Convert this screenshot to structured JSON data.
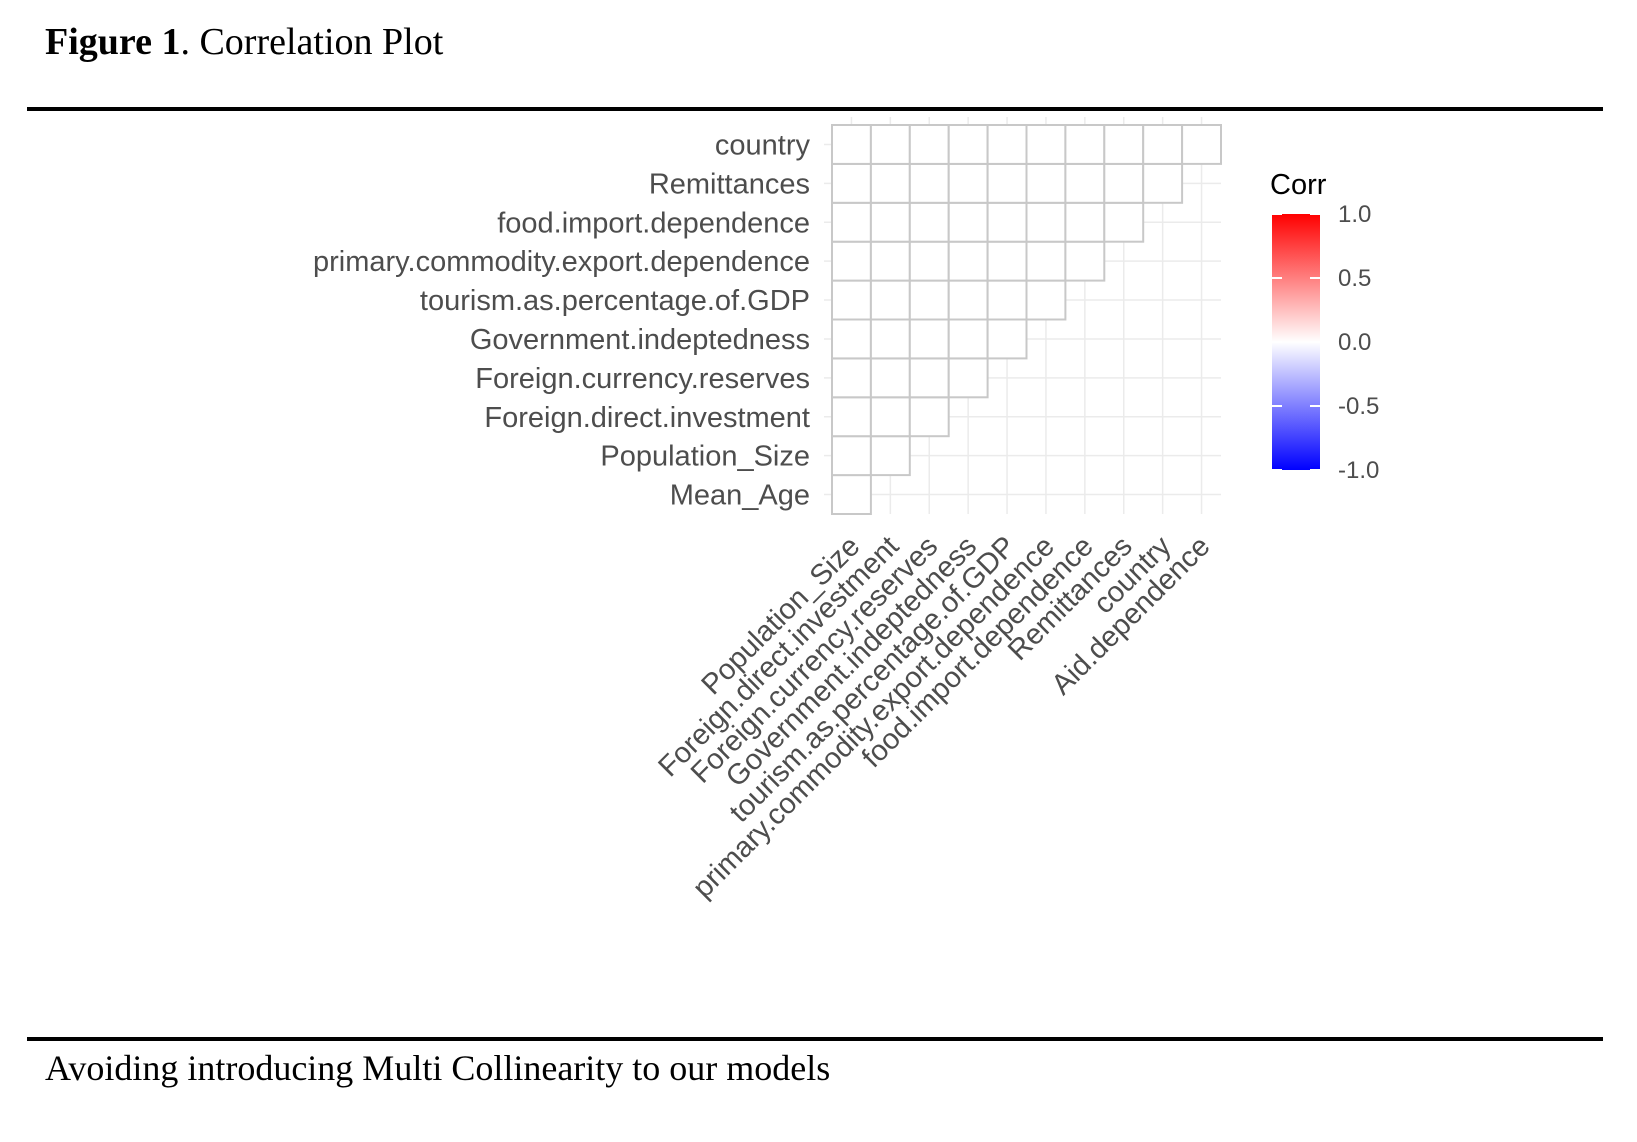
{
  "figure": {
    "label": "Figure 1",
    "title_rest": ". Correlation Plot",
    "caption": "Avoiding introducing Multi Collinearity to our models"
  },
  "chart_data": {
    "type": "heatmap",
    "title": "",
    "y_categories": [
      "Mean_Age",
      "Population_Size",
      "Foreign.direct.investment",
      "Foreign.currency.reserves",
      "Government.indeptedness",
      "tourism.as.percentage.of.GDP",
      "primary.commodity.export.dependence",
      "food.import.dependence",
      "Remittances",
      "country"
    ],
    "x_categories": [
      "Population_Size",
      "Foreign.direct.investment",
      "Foreign.currency.reserves",
      "Government.indeptedness",
      "tourism.as.percentage.of.GDP",
      "primary.commodity.export.dependence",
      "food.import.dependence",
      "Remittances",
      "country",
      "Aid.dependence"
    ],
    "layout": "lower-triangle",
    "cells_filled": false,
    "legend": {
      "title": "Corr",
      "position": "right",
      "ticks": [
        "1.0",
        "0.5",
        "0.0",
        "-0.5",
        "-1.0"
      ],
      "tick_values": [
        1.0,
        0.5,
        0.0,
        -0.5,
        -1.0
      ],
      "range": [
        -1,
        1
      ],
      "colors": {
        "low": "#0000ff",
        "mid": "#ffffff",
        "high": "#ff0000"
      }
    },
    "grid": true,
    "colors": {
      "cell_border": "#c8c8c8",
      "grid": "#ebebeb",
      "tick_text": "#4d4d4d"
    }
  }
}
